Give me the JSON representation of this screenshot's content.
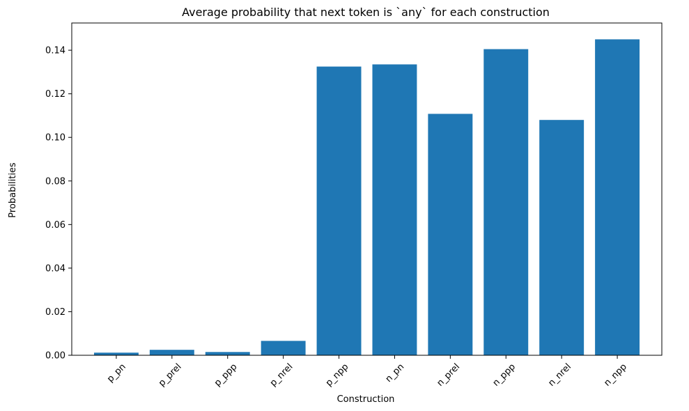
{
  "chart_data": {
    "type": "bar",
    "title": "Average probability that next token is `any` for each construction",
    "xlabel": "Construction",
    "ylabel": "Probabilities",
    "categories": [
      "p_pn",
      "p_prel",
      "p_ppp",
      "p_nrel",
      "p_npp",
      "n_pn",
      "n_prel",
      "n_ppp",
      "n_nrel",
      "n_npp"
    ],
    "values": [
      0.0012,
      0.0025,
      0.0015,
      0.0066,
      0.1325,
      0.1335,
      0.1108,
      0.1405,
      0.108,
      0.145
    ],
    "ylim": [
      0,
      0.1525
    ],
    "yticks": [
      "0.00",
      "0.02",
      "0.04",
      "0.06",
      "0.08",
      "0.10",
      "0.12",
      "0.14"
    ],
    "bar_color": "#1f77b4",
    "grid": false,
    "legend": false
  }
}
